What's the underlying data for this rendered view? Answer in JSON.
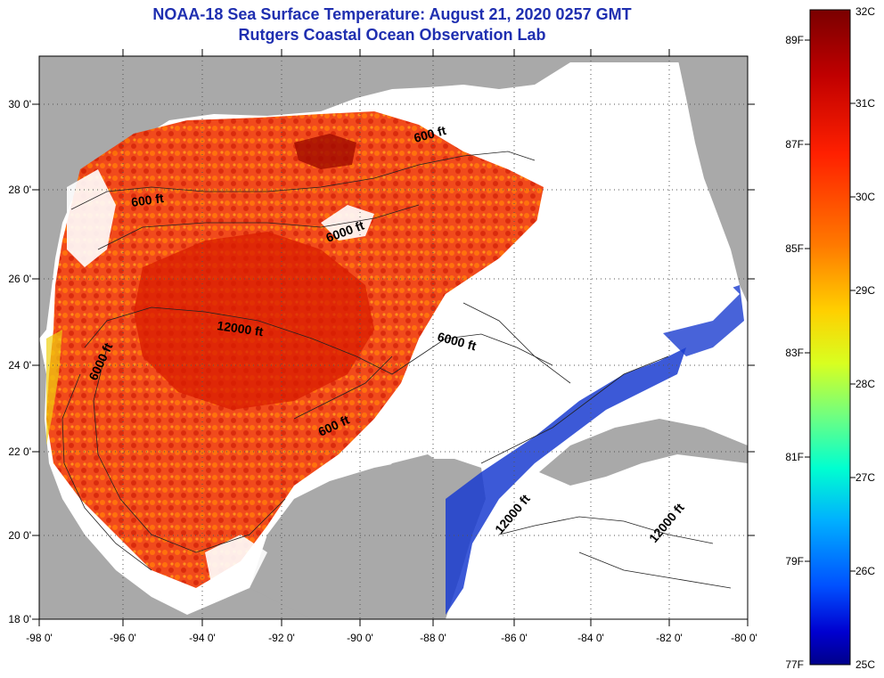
{
  "title": "NOAA-18 Sea Surface Temperature:  August 21, 2020 0257 GMT",
  "subtitle": "Rutgers Coastal Ocean Observation Lab",
  "lat_labels": [
    "30 0'",
    "28 0'",
    "26 0'",
    "24 0'",
    "22 0'",
    "20 0'",
    "18 0'"
  ],
  "lon_labels": [
    "-98 0'",
    "-96 0'",
    "-94 0'",
    "-92 0'",
    "-90 0'",
    "-88 0'",
    "-86 0'",
    "-84 0'",
    "-82 0'",
    "-80 0'"
  ],
  "contours": [
    {
      "label": "600 ft"
    },
    {
      "label": "6000 ft"
    },
    {
      "label": "600 ft"
    },
    {
      "label": "12000 ft"
    },
    {
      "label": "6000 ft"
    },
    {
      "label": "6000 ft"
    },
    {
      "label": "600 ft"
    },
    {
      "label": "12000 ft"
    },
    {
      "label": "12000 ft"
    }
  ],
  "colorbar": {
    "celsius": [
      "32C",
      "31C",
      "30C",
      "29C",
      "28C",
      "27C",
      "26C",
      "25C"
    ],
    "fahrenheit": [
      "89F",
      "87F",
      "85F",
      "83F",
      "81F",
      "79F",
      "77F"
    ],
    "colors": [
      "#7a0000",
      "#c00000",
      "#ff2000",
      "#ff7a00",
      "#ffd000",
      "#d8ff20",
      "#70ff80",
      "#00ffd0",
      "#00b0ff",
      "#0050ff",
      "#0000d0",
      "#00008a"
    ]
  },
  "colors": {
    "land": "#a9a9a9",
    "no_data": "#ffffff",
    "title": "#1f2fb0"
  }
}
